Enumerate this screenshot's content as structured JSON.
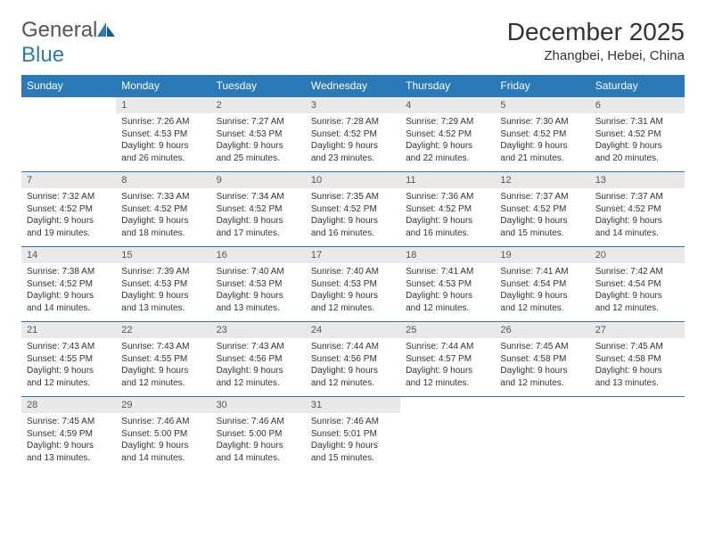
{
  "logo": {
    "textGray": "General",
    "textBlue": "Blue"
  },
  "title": "December 2025",
  "subtitle": "Zhangbei, Hebei, China",
  "colors": {
    "headerBg": "#2a7ab9",
    "headerText": "#ffffff",
    "dayNumBg": "#e9e9e9",
    "borderTop": "#2a7ab9",
    "bodyText": "#333333",
    "pageBg": "#ffffff"
  },
  "fonts": {
    "title": 28,
    "subtitle": 15,
    "dayHeader": 12,
    "dayNum": 11,
    "cell": 10
  },
  "dayHeaders": [
    "Sunday",
    "Monday",
    "Tuesday",
    "Wednesday",
    "Thursday",
    "Friday",
    "Saturday"
  ],
  "weeks": [
    [
      null,
      {
        "n": "1",
        "sr": "7:26 AM",
        "ss": "4:53 PM",
        "dl1": "Daylight: 9 hours",
        "dl2": "and 26 minutes."
      },
      {
        "n": "2",
        "sr": "7:27 AM",
        "ss": "4:53 PM",
        "dl1": "Daylight: 9 hours",
        "dl2": "and 25 minutes."
      },
      {
        "n": "3",
        "sr": "7:28 AM",
        "ss": "4:52 PM",
        "dl1": "Daylight: 9 hours",
        "dl2": "and 23 minutes."
      },
      {
        "n": "4",
        "sr": "7:29 AM",
        "ss": "4:52 PM",
        "dl1": "Daylight: 9 hours",
        "dl2": "and 22 minutes."
      },
      {
        "n": "5",
        "sr": "7:30 AM",
        "ss": "4:52 PM",
        "dl1": "Daylight: 9 hours",
        "dl2": "and 21 minutes."
      },
      {
        "n": "6",
        "sr": "7:31 AM",
        "ss": "4:52 PM",
        "dl1": "Daylight: 9 hours",
        "dl2": "and 20 minutes."
      }
    ],
    [
      {
        "n": "7",
        "sr": "7:32 AM",
        "ss": "4:52 PM",
        "dl1": "Daylight: 9 hours",
        "dl2": "and 19 minutes."
      },
      {
        "n": "8",
        "sr": "7:33 AM",
        "ss": "4:52 PM",
        "dl1": "Daylight: 9 hours",
        "dl2": "and 18 minutes."
      },
      {
        "n": "9",
        "sr": "7:34 AM",
        "ss": "4:52 PM",
        "dl1": "Daylight: 9 hours",
        "dl2": "and 17 minutes."
      },
      {
        "n": "10",
        "sr": "7:35 AM",
        "ss": "4:52 PM",
        "dl1": "Daylight: 9 hours",
        "dl2": "and 16 minutes."
      },
      {
        "n": "11",
        "sr": "7:36 AM",
        "ss": "4:52 PM",
        "dl1": "Daylight: 9 hours",
        "dl2": "and 16 minutes."
      },
      {
        "n": "12",
        "sr": "7:37 AM",
        "ss": "4:52 PM",
        "dl1": "Daylight: 9 hours",
        "dl2": "and 15 minutes."
      },
      {
        "n": "13",
        "sr": "7:37 AM",
        "ss": "4:52 PM",
        "dl1": "Daylight: 9 hours",
        "dl2": "and 14 minutes."
      }
    ],
    [
      {
        "n": "14",
        "sr": "7:38 AM",
        "ss": "4:52 PM",
        "dl1": "Daylight: 9 hours",
        "dl2": "and 14 minutes."
      },
      {
        "n": "15",
        "sr": "7:39 AM",
        "ss": "4:53 PM",
        "dl1": "Daylight: 9 hours",
        "dl2": "and 13 minutes."
      },
      {
        "n": "16",
        "sr": "7:40 AM",
        "ss": "4:53 PM",
        "dl1": "Daylight: 9 hours",
        "dl2": "and 13 minutes."
      },
      {
        "n": "17",
        "sr": "7:40 AM",
        "ss": "4:53 PM",
        "dl1": "Daylight: 9 hours",
        "dl2": "and 12 minutes."
      },
      {
        "n": "18",
        "sr": "7:41 AM",
        "ss": "4:53 PM",
        "dl1": "Daylight: 9 hours",
        "dl2": "and 12 minutes."
      },
      {
        "n": "19",
        "sr": "7:41 AM",
        "ss": "4:54 PM",
        "dl1": "Daylight: 9 hours",
        "dl2": "and 12 minutes."
      },
      {
        "n": "20",
        "sr": "7:42 AM",
        "ss": "4:54 PM",
        "dl1": "Daylight: 9 hours",
        "dl2": "and 12 minutes."
      }
    ],
    [
      {
        "n": "21",
        "sr": "7:43 AM",
        "ss": "4:55 PM",
        "dl1": "Daylight: 9 hours",
        "dl2": "and 12 minutes."
      },
      {
        "n": "22",
        "sr": "7:43 AM",
        "ss": "4:55 PM",
        "dl1": "Daylight: 9 hours",
        "dl2": "and 12 minutes."
      },
      {
        "n": "23",
        "sr": "7:43 AM",
        "ss": "4:56 PM",
        "dl1": "Daylight: 9 hours",
        "dl2": "and 12 minutes."
      },
      {
        "n": "24",
        "sr": "7:44 AM",
        "ss": "4:56 PM",
        "dl1": "Daylight: 9 hours",
        "dl2": "and 12 minutes."
      },
      {
        "n": "25",
        "sr": "7:44 AM",
        "ss": "4:57 PM",
        "dl1": "Daylight: 9 hours",
        "dl2": "and 12 minutes."
      },
      {
        "n": "26",
        "sr": "7:45 AM",
        "ss": "4:58 PM",
        "dl1": "Daylight: 9 hours",
        "dl2": "and 12 minutes."
      },
      {
        "n": "27",
        "sr": "7:45 AM",
        "ss": "4:58 PM",
        "dl1": "Daylight: 9 hours",
        "dl2": "and 13 minutes."
      }
    ],
    [
      {
        "n": "28",
        "sr": "7:45 AM",
        "ss": "4:59 PM",
        "dl1": "Daylight: 9 hours",
        "dl2": "and 13 minutes."
      },
      {
        "n": "29",
        "sr": "7:46 AM",
        "ss": "5:00 PM",
        "dl1": "Daylight: 9 hours",
        "dl2": "and 14 minutes."
      },
      {
        "n": "30",
        "sr": "7:46 AM",
        "ss": "5:00 PM",
        "dl1": "Daylight: 9 hours",
        "dl2": "and 14 minutes."
      },
      {
        "n": "31",
        "sr": "7:46 AM",
        "ss": "5:01 PM",
        "dl1": "Daylight: 9 hours",
        "dl2": "and 15 minutes."
      },
      null,
      null,
      null
    ]
  ],
  "labels": {
    "sunrise": "Sunrise: ",
    "sunset": "Sunset: "
  }
}
